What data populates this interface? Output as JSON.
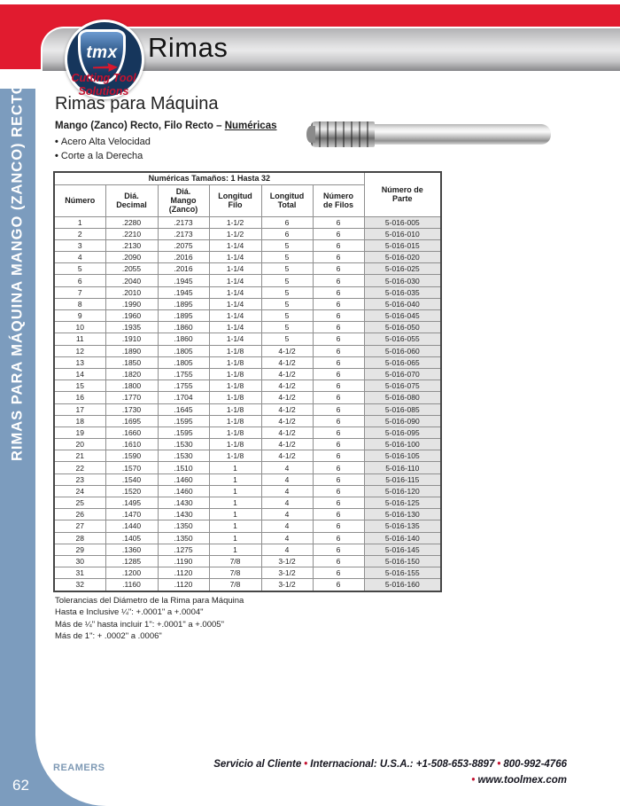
{
  "page": {
    "title": "Rimas",
    "page_number": "62",
    "sidebar_text": "RIMAS PARA MÁQUINA MANGO (ZANCO) RECTO"
  },
  "logo": {
    "brand": "tmx",
    "tagline": "Cutting Tool\nSolutions"
  },
  "content": {
    "heading": "Rimas para Máquina",
    "subheading_prefix": "Mango (Zanco) Recto, Filo Recto – ",
    "subheading_link": "Numéricas",
    "bullets": [
      "Acero Alta Velocidad",
      "Corte a la Derecha"
    ]
  },
  "table": {
    "span_header": "Numéricas Tamaños: 1 Hasta 32",
    "part_header": "Número de\nParte",
    "columns": [
      "Número",
      "Diá.\nDecimal",
      "Diá.\nMango (Zanco)",
      "Longitud\nFilo",
      "Longitud\nTotal",
      "Número\nde Filos"
    ],
    "rows": [
      [
        "1",
        ".2280",
        ".2173",
        "1-1/2",
        "6",
        "6",
        "5-016-005"
      ],
      [
        "2",
        ".2210",
        ".2173",
        "1-1/2",
        "6",
        "6",
        "5-016-010"
      ],
      [
        "3",
        ".2130",
        ".2075",
        "1-1/4",
        "5",
        "6",
        "5-016-015"
      ],
      [
        "4",
        ".2090",
        ".2016",
        "1-1/4",
        "5",
        "6",
        "5-016-020"
      ],
      [
        "5",
        ".2055",
        ".2016",
        "1-1/4",
        "5",
        "6",
        "5-016-025"
      ],
      [
        "6",
        ".2040",
        ".1945",
        "1-1/4",
        "5",
        "6",
        "5-016-030"
      ],
      [
        "7",
        ".2010",
        ".1945",
        "1-1/4",
        "5",
        "6",
        "5-016-035"
      ],
      [
        "8",
        ".1990",
        ".1895",
        "1-1/4",
        "5",
        "6",
        "5-016-040"
      ],
      [
        "9",
        ".1960",
        ".1895",
        "1-1/4",
        "5",
        "6",
        "5-016-045"
      ],
      [
        "10",
        ".1935",
        ".1860",
        "1-1/4",
        "5",
        "6",
        "5-016-050"
      ],
      [
        "11",
        ".1910",
        ".1860",
        "1-1/4",
        "5",
        "6",
        "5-016-055"
      ],
      [
        "12",
        ".1890",
        ".1805",
        "1-1/8",
        "4-1/2",
        "6",
        "5-016-060"
      ],
      [
        "13",
        ".1850",
        ".1805",
        "1-1/8",
        "4-1/2",
        "6",
        "5-016-065"
      ],
      [
        "14",
        ".1820",
        ".1755",
        "1-1/8",
        "4-1/2",
        "6",
        "5-016-070"
      ],
      [
        "15",
        ".1800",
        ".1755",
        "1-1/8",
        "4-1/2",
        "6",
        "5-016-075"
      ],
      [
        "16",
        ".1770",
        ".1704",
        "1-1/8",
        "4-1/2",
        "6",
        "5-016-080"
      ],
      [
        "17",
        ".1730",
        ".1645",
        "1-1/8",
        "4-1/2",
        "6",
        "5-016-085"
      ],
      [
        "18",
        ".1695",
        ".1595",
        "1-1/8",
        "4-1/2",
        "6",
        "5-016-090"
      ],
      [
        "19",
        ".1660",
        ".1595",
        "1-1/8",
        "4-1/2",
        "6",
        "5-016-095"
      ],
      [
        "20",
        ".1610",
        ".1530",
        "1-1/8",
        "4-1/2",
        "6",
        "5-016-100"
      ],
      [
        "21",
        ".1590",
        ".1530",
        "1-1/8",
        "4-1/2",
        "6",
        "5-016-105"
      ],
      [
        "22",
        ".1570",
        ".1510",
        "1",
        "4",
        "6",
        "5-016-110"
      ],
      [
        "23",
        ".1540",
        ".1460",
        "1",
        "4",
        "6",
        "5-016-115"
      ],
      [
        "24",
        ".1520",
        ".1460",
        "1",
        "4",
        "6",
        "5-016-120"
      ],
      [
        "25",
        ".1495",
        ".1430",
        "1",
        "4",
        "6",
        "5-016-125"
      ],
      [
        "26",
        ".1470",
        ".1430",
        "1",
        "4",
        "6",
        "5-016-130"
      ],
      [
        "27",
        ".1440",
        ".1350",
        "1",
        "4",
        "6",
        "5-016-135"
      ],
      [
        "28",
        ".1405",
        ".1350",
        "1",
        "4",
        "6",
        "5-016-140"
      ],
      [
        "29",
        ".1360",
        ".1275",
        "1",
        "4",
        "6",
        "5-016-145"
      ],
      [
        "30",
        ".1285",
        ".1190",
        "7/8",
        "3-1/2",
        "6",
        "5-016-150"
      ],
      [
        "31",
        ".1200",
        ".1120",
        "7/8",
        "3-1/2",
        "6",
        "5-016-155"
      ],
      [
        "32",
        ".1160",
        ".1120",
        "7/8",
        "3-1/2",
        "6",
        "5-016-160"
      ]
    ]
  },
  "notes": [
    "Tolerancias del Diámetro de la Rima para Máquina",
    "Hasta e Inclusive ¼\": +.0001\" a +.0004\"",
    "Más de ¼\" hasta incluir 1\": +.0001\" a +.0005\"",
    "Más de 1\": + .0002\" a .0006\""
  ],
  "footer": {
    "left_label": "REAMERS",
    "separator": "•",
    "service_items": [
      "Servicio al Cliente",
      "Internacional: U.S.A.: +1-508-653-8897",
      "800-992-4766"
    ],
    "website": "www.toolmex.com"
  },
  "colors": {
    "banner_red": "#e11b2f",
    "sidebar_blue": "#7c9cbe",
    "accent_red": "#c41230",
    "part_cell_gray": "#e4e4e4"
  }
}
